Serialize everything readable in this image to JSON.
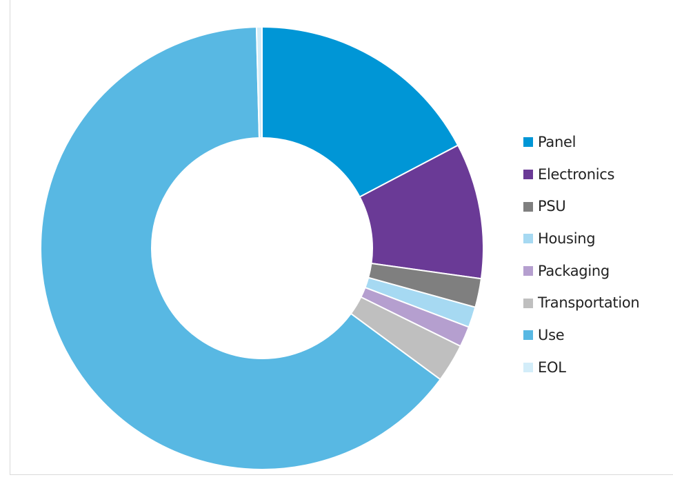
{
  "chart_data": {
    "type": "pie",
    "variant": "donut",
    "legend_position": "right",
    "series": [
      {
        "name": "Panel",
        "value": 17.3,
        "color": "#0096d6"
      },
      {
        "name": "Electronics",
        "value": 9.9,
        "color": "#6a3a96"
      },
      {
        "name": "PSU",
        "value": 2.1,
        "color": "#7f7f7f"
      },
      {
        "name": "Housing",
        "value": 1.5,
        "color": "#a6d9f2"
      },
      {
        "name": "Packaging",
        "value": 1.5,
        "color": "#b59fcf"
      },
      {
        "name": "Transportation",
        "value": 2.8,
        "color": "#bfbfbf"
      },
      {
        "name": "Use",
        "value": 64.5,
        "color": "#58b8e3"
      },
      {
        "name": "EOL",
        "value": 0.4,
        "color": "#d3edf9"
      }
    ]
  }
}
